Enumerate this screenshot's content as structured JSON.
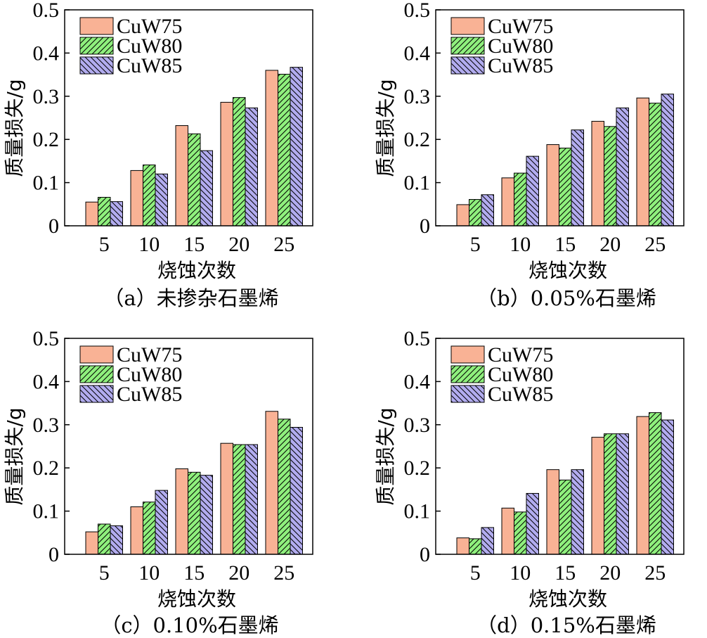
{
  "colors": {
    "CuW75": "#f9b295",
    "CuW80": "#8ff07d",
    "CuW85": "#b2acef",
    "hatch": "#000000"
  },
  "chart_data": [
    {
      "type": "bar",
      "panel": "a",
      "title": "（a）未掺杂石墨烯",
      "xlabel": "烧蚀次数",
      "ylabel": "质量损失/g",
      "categories": [
        "5",
        "10",
        "15",
        "20",
        "25"
      ],
      "ylim": [
        0,
        0.5
      ],
      "yticks": [
        "0",
        "0.1",
        "0.2",
        "0.3",
        "0.4",
        "0.5"
      ],
      "grid": false,
      "legend_position": "top-left",
      "series": [
        {
          "name": "CuW75",
          "values": [
            0.055,
            0.128,
            0.232,
            0.286,
            0.36
          ]
        },
        {
          "name": "CuW80",
          "values": [
            0.066,
            0.141,
            0.213,
            0.297,
            0.351
          ]
        },
        {
          "name": "CuW85",
          "values": [
            0.056,
            0.12,
            0.174,
            0.273,
            0.367
          ]
        }
      ]
    },
    {
      "type": "bar",
      "panel": "b",
      "title": "（b）0.05%石墨烯",
      "xlabel": "烧蚀次数",
      "ylabel": "质量损失/g",
      "categories": [
        "5",
        "10",
        "15",
        "20",
        "25"
      ],
      "ylim": [
        0,
        0.5
      ],
      "yticks": [
        "0",
        "0.1",
        "0.2",
        "0.3",
        "0.4",
        "0.5"
      ],
      "grid": false,
      "legend_position": "top-left",
      "series": [
        {
          "name": "CuW75",
          "values": [
            0.049,
            0.111,
            0.188,
            0.242,
            0.296
          ]
        },
        {
          "name": "CuW80",
          "values": [
            0.061,
            0.122,
            0.18,
            0.23,
            0.284
          ]
        },
        {
          "name": "CuW85",
          "values": [
            0.072,
            0.161,
            0.222,
            0.273,
            0.305
          ]
        }
      ]
    },
    {
      "type": "bar",
      "panel": "c",
      "title": "（c）0.10%石墨烯",
      "xlabel": "烧蚀次数",
      "ylabel": "质量损失/g",
      "categories": [
        "5",
        "10",
        "15",
        "20",
        "25"
      ],
      "ylim": [
        0,
        0.5
      ],
      "yticks": [
        "0",
        "0.1",
        "0.2",
        "0.3",
        "0.4",
        "0.5"
      ],
      "grid": false,
      "legend_position": "top-left",
      "series": [
        {
          "name": "CuW75",
          "values": [
            0.052,
            0.11,
            0.198,
            0.257,
            0.331
          ]
        },
        {
          "name": "CuW80",
          "values": [
            0.07,
            0.121,
            0.19,
            0.254,
            0.313
          ]
        },
        {
          "name": "CuW85",
          "values": [
            0.066,
            0.148,
            0.183,
            0.254,
            0.294
          ]
        }
      ]
    },
    {
      "type": "bar",
      "panel": "d",
      "title": "（d）0.15%石墨烯",
      "xlabel": "烧蚀次数",
      "ylabel": "质量损失/g",
      "categories": [
        "5",
        "10",
        "15",
        "20",
        "25"
      ],
      "ylim": [
        0,
        0.5
      ],
      "yticks": [
        "0",
        "0.1",
        "0.2",
        "0.3",
        "0.4",
        "0.5"
      ],
      "grid": false,
      "legend_position": "top-left",
      "series": [
        {
          "name": "CuW75",
          "values": [
            0.038,
            0.107,
            0.196,
            0.271,
            0.319
          ]
        },
        {
          "name": "CuW80",
          "values": [
            0.036,
            0.098,
            0.172,
            0.279,
            0.328
          ]
        },
        {
          "name": "CuW85",
          "values": [
            0.062,
            0.141,
            0.196,
            0.279,
            0.311
          ]
        }
      ]
    }
  ]
}
